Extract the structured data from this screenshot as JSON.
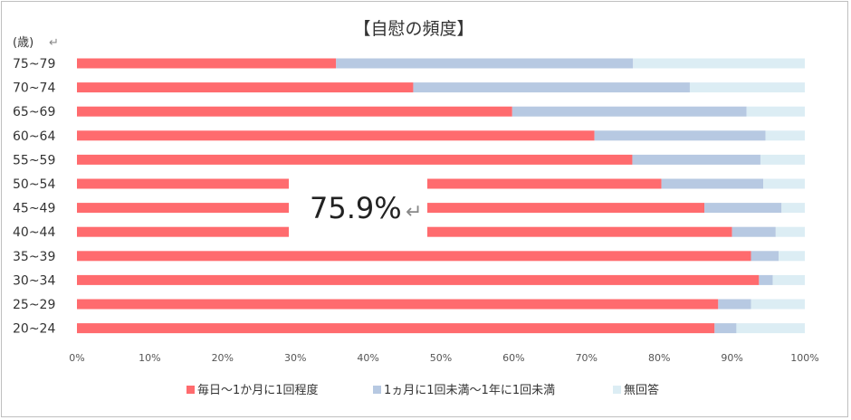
{
  "chart_data": {
    "type": "bar",
    "orientation": "horizontal",
    "stacked": true,
    "title": "【自慰の頻度】",
    "ylabel": "(歳)",
    "categories": [
      "75~79",
      "70~74",
      "65~69",
      "60~64",
      "55~59",
      "50~54",
      "45~49",
      "40~44",
      "35~39",
      "30~34",
      "25~29",
      "20~24"
    ],
    "series": [
      {
        "name": "毎日〜1か月に1回程度",
        "color": "#ff6b6e",
        "values": [
          35.6,
          46.2,
          59.8,
          71.1,
          76.3,
          80.3,
          86.2,
          90.0,
          92.6,
          93.7,
          88.1,
          87.6
        ]
      },
      {
        "name": "1ヵ月に1回未満〜1年に1回未満",
        "color": "#b7c9e2",
        "values": [
          40.8,
          38.0,
          32.2,
          23.5,
          17.6,
          14.0,
          10.6,
          6.0,
          3.8,
          1.9,
          4.5,
          3.0
        ]
      },
      {
        "name": "無回答",
        "color": "#dcedf4",
        "values": [
          23.6,
          15.8,
          8.0,
          5.4,
          6.1,
          5.7,
          3.2,
          4.0,
          3.6,
          4.4,
          7.4,
          9.4
        ]
      }
    ],
    "xlim": [
      0,
      100
    ],
    "xticks": [
      "0%",
      "10%",
      "20%",
      "30%",
      "40%",
      "50%",
      "60%",
      "70%",
      "80%",
      "90%",
      "100%"
    ],
    "grid": false,
    "legend_position": "bottom",
    "annotation": "75.9%"
  }
}
